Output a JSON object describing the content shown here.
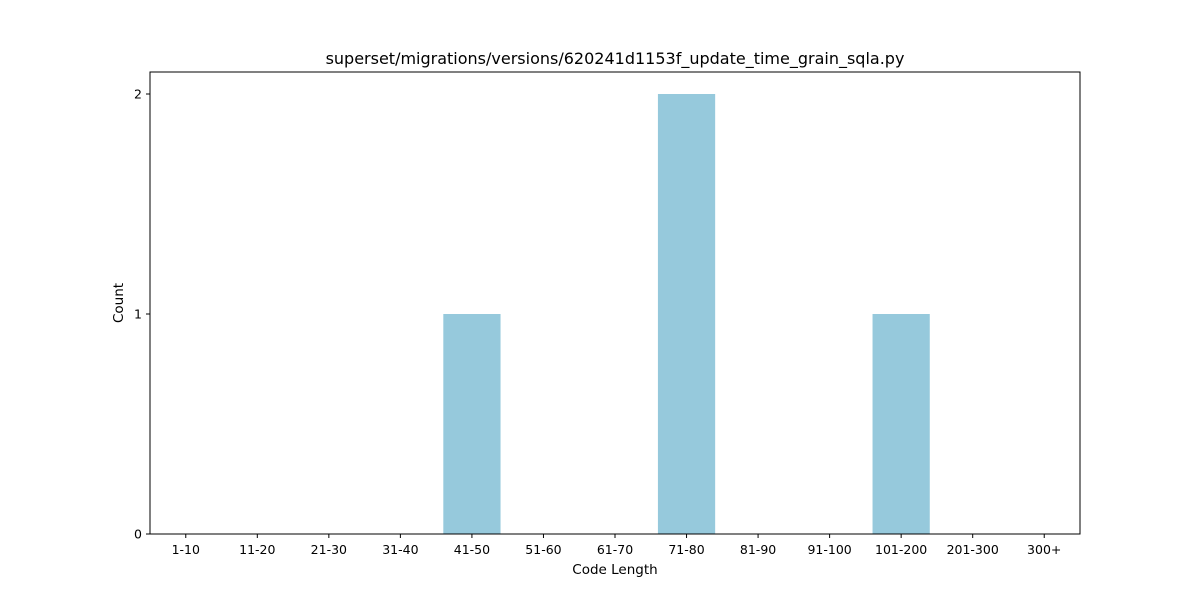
{
  "chart_data": {
    "type": "bar",
    "title": "superset/migrations/versions/620241d1153f_update_time_grain_sqla.py",
    "xlabel": "Code Length",
    "ylabel": "Count",
    "categories": [
      "1-10",
      "11-20",
      "21-30",
      "31-40",
      "41-50",
      "51-60",
      "61-70",
      "71-80",
      "81-90",
      "91-100",
      "101-200",
      "201-300",
      "300+"
    ],
    "values": [
      0,
      0,
      0,
      0,
      1,
      0,
      0,
      2,
      0,
      0,
      1,
      0,
      0
    ],
    "yticks": [
      "0",
      "1",
      "2"
    ],
    "ylim": [
      0,
      2.1
    ],
    "grid": false,
    "bar_color": "#96c9dc"
  }
}
